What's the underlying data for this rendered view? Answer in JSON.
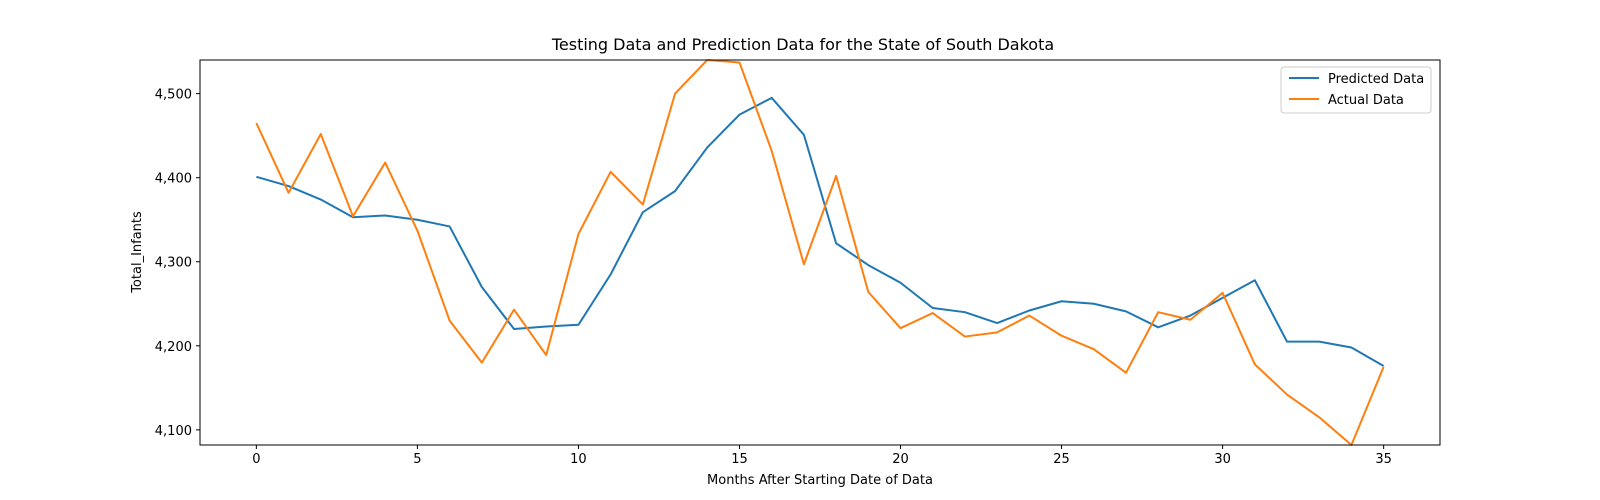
{
  "chart_data": {
    "type": "line",
    "title": "Testing Data and Prediction Data for the State of South Dakota",
    "xlabel": "Months After Starting Date of Data",
    "ylabel": "Total_Infants",
    "xlim": [
      -1.75,
      36.75
    ],
    "ylim": [
      4082,
      4540
    ],
    "xticks": [
      0,
      5,
      10,
      15,
      20,
      25,
      30,
      35
    ],
    "xtick_labels": [
      "0",
      "5",
      "10",
      "15",
      "20",
      "25",
      "30",
      "35"
    ],
    "yticks": [
      4100,
      4200,
      4300,
      4400,
      4500
    ],
    "ytick_labels": [
      "4,100",
      "4,200",
      "4,300",
      "4,400",
      "4,500"
    ],
    "grid": false,
    "legend_position": "upper right",
    "x": [
      0,
      1,
      2,
      3,
      4,
      5,
      6,
      7,
      8,
      9,
      10,
      11,
      12,
      13,
      14,
      15,
      16,
      17,
      18,
      19,
      20,
      21,
      22,
      23,
      24,
      25,
      26,
      27,
      28,
      29,
      30,
      31,
      32,
      33,
      34,
      35
    ],
    "series": [
      {
        "name": "Predicted Data",
        "color": "#1f77b4",
        "values": [
          4401,
          4390,
          4374,
          4353,
          4355,
          4350,
          4342,
          4270,
          4220,
          4223,
          4225,
          4285,
          4359,
          4384,
          4436,
          4475,
          4495,
          4451,
          4322,
          4296,
          4275,
          4245,
          4240,
          4227,
          4242,
          4253,
          4250,
          4241,
          4222,
          4236,
          4257,
          4278,
          4205,
          4205,
          4198,
          4176
        ]
      },
      {
        "name": "Actual Data",
        "color": "#ff7f0e",
        "values": [
          4465,
          4382,
          4452,
          4354,
          4418,
          4337,
          4230,
          4180,
          4243,
          4189,
          4333,
          4407,
          4368,
          4500,
          4540,
          4537,
          4432,
          4297,
          4402,
          4264,
          4221,
          4239,
          4211,
          4216,
          4236,
          4212,
          4196,
          4168,
          4240,
          4231,
          4263,
          4178,
          4142,
          4115,
          4082,
          4175
        ]
      }
    ]
  }
}
